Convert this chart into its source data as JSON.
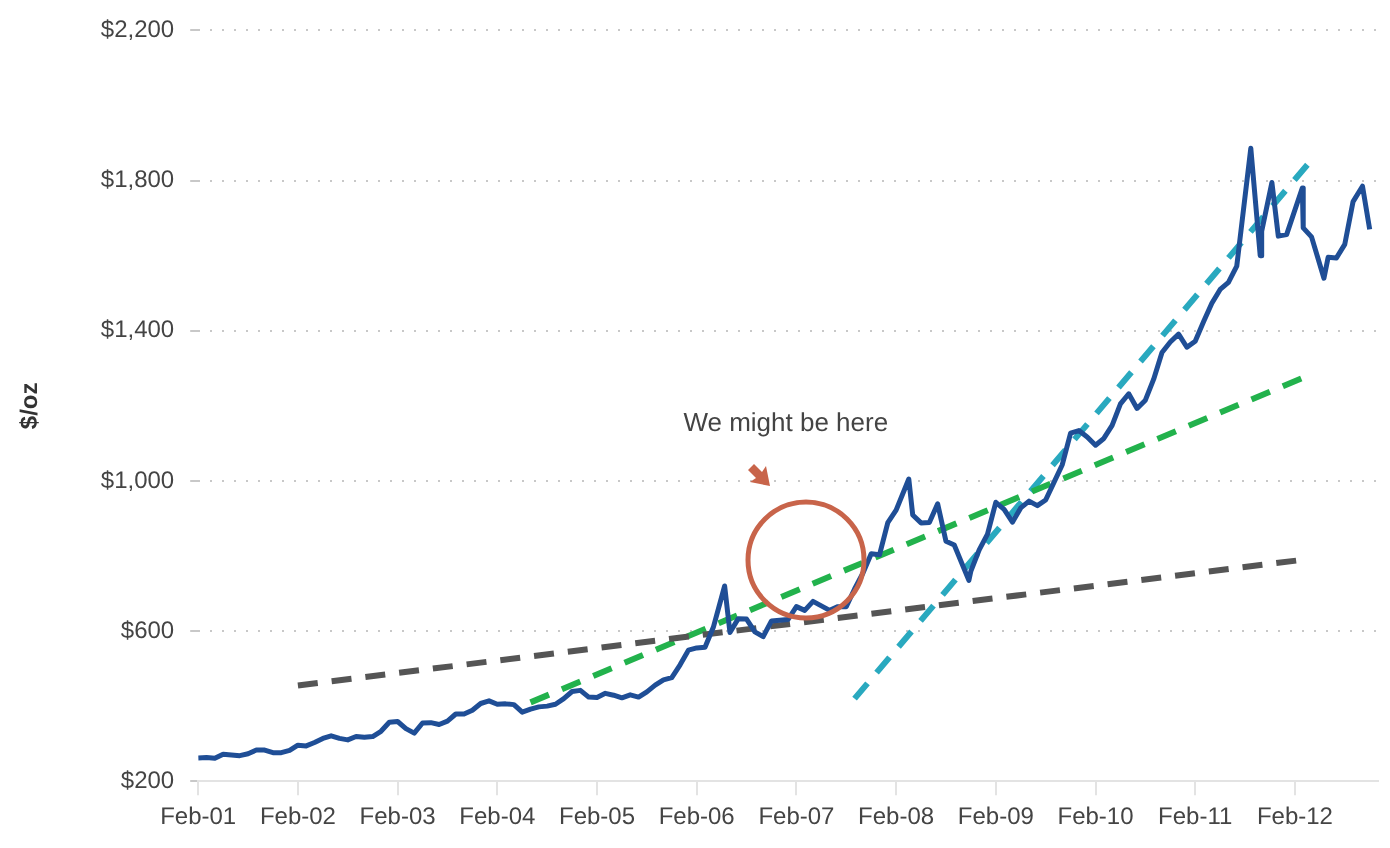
{
  "chart_data": {
    "type": "line",
    "ylabel": "$/oz",
    "xlim": [
      "2001-02",
      "2012-12"
    ],
    "xticks": [
      {
        "value": "2001-02",
        "label": "Feb-01"
      },
      {
        "value": "2002-02",
        "label": "Feb-02"
      },
      {
        "value": "2003-02",
        "label": "Feb-03"
      },
      {
        "value": "2004-02",
        "label": "Feb-04"
      },
      {
        "value": "2005-02",
        "label": "Feb-05"
      },
      {
        "value": "2006-02",
        "label": "Feb-06"
      },
      {
        "value": "2007-02",
        "label": "Feb-07"
      },
      {
        "value": "2008-02",
        "label": "Feb-08"
      },
      {
        "value": "2009-02",
        "label": "Feb-09"
      },
      {
        "value": "2010-02",
        "label": "Feb-10"
      },
      {
        "value": "2011-02",
        "label": "Feb-11"
      },
      {
        "value": "2012-02",
        "label": "Feb-12"
      }
    ],
    "ylim": [
      200,
      2200
    ],
    "yticks": [
      {
        "value": 200,
        "label": "$200"
      },
      {
        "value": 600,
        "label": "$600"
      },
      {
        "value": 1000,
        "label": "$1,000"
      },
      {
        "value": 1400,
        "label": "$1,400"
      },
      {
        "value": 1800,
        "label": "$1,800"
      },
      {
        "value": 2200,
        "label": "$2,200"
      }
    ],
    "grid": "y",
    "marker": "none",
    "annotations": [
      "We might be here"
    ],
    "series": [
      {
        "color": "#1f4e96",
        "line_style": "solid",
        "x": [
          "2001-02",
          "2001-03",
          "2001-04",
          "2001-05",
          "2001-06",
          "2001-07",
          "2001-08",
          "2001-09",
          "2001-10",
          "2001-11",
          "2001-12",
          "2002-01",
          "2002-02",
          "2002-03",
          "2002-04",
          "2002-05",
          "2002-06",
          "2002-07",
          "2002-08",
          "2002-09",
          "2002-10",
          "2002-11",
          "2002-12",
          "2003-01",
          "2003-02",
          "2003-03",
          "2003-04",
          "2003-05",
          "2003-06",
          "2003-07",
          "2003-08",
          "2003-09",
          "2003-10",
          "2003-11",
          "2003-12",
          "2004-01",
          "2004-02",
          "2004-03",
          "2004-04",
          "2004-05",
          "2004-06",
          "2004-07",
          "2004-08",
          "2004-09",
          "2004-10",
          "2004-11",
          "2004-12",
          "2005-01",
          "2005-02",
          "2005-03",
          "2005-04",
          "2005-05",
          "2005-06",
          "2005-07",
          "2005-08",
          "2005-09",
          "2005-10",
          "2005-11",
          "2005-12",
          "2006-01",
          "2006-02",
          "2006-03",
          "2006-04",
          "2006-05-12",
          "2006-06",
          "2006-07",
          "2006-08",
          "2006-09",
          "2006-10",
          "2006-11",
          "2006-12",
          "2007-01",
          "2007-02",
          "2007-03",
          "2007-04",
          "2007-05",
          "2007-06",
          "2007-07",
          "2007-08",
          "2007-09",
          "2007-10",
          "2007-11",
          "2007-12",
          "2008-01",
          "2008-02",
          "2008-03-17",
          "2008-04",
          "2008-05",
          "2008-06",
          "2008-07",
          "2008-08",
          "2008-09",
          "2008-10-24",
          "2008-11",
          "2008-12",
          "2009-01",
          "2009-02",
          "2009-03",
          "2009-04",
          "2009-05",
          "2009-06",
          "2009-07",
          "2009-08",
          "2009-09",
          "2009-10",
          "2009-11",
          "2009-12",
          "2010-01",
          "2010-02",
          "2010-03",
          "2010-04",
          "2010-05",
          "2010-06",
          "2010-07",
          "2010-08",
          "2010-09",
          "2010-10",
          "2010-11",
          "2010-12",
          "2011-01",
          "2011-02",
          "2011-03",
          "2011-04",
          "2011-05",
          "2011-06",
          "2011-07",
          "2011-08-22",
          "2011-09-26",
          "2011-10",
          "2011-11-08",
          "2011-12",
          "2012-01",
          "2012-02-28",
          "2012-03",
          "2012-04",
          "2012-05-16",
          "2012-06",
          "2012-07",
          "2012-08",
          "2012-09",
          "2012-10-05",
          "2012-11"
        ],
        "values": [
          262,
          263,
          261,
          272,
          270,
          268,
          273,
          283,
          283,
          276,
          276,
          282,
          296,
          294,
          303,
          314,
          321,
          314,
          310,
          319,
          317,
          319,
          333,
          357,
          359,
          340,
          328,
          355,
          356,
          351,
          360,
          379,
          379,
          389,
          407,
          414,
          405,
          406,
          404,
          384,
          392,
          398,
          400,
          405,
          420,
          439,
          442,
          424,
          423,
          434,
          429,
          422,
          430,
          424,
          438,
          456,
          470,
          476,
          510,
          549,
          555,
          557,
          610,
          720,
          596,
          633,
          632,
          598,
          585,
          627,
          629,
          631,
          665,
          655,
          679,
          667,
          655,
          665,
          665,
          712,
          754,
          806,
          803,
          889,
          922,
          1005,
          909,
          888,
          889,
          939,
          839,
          829,
          735,
          760,
          816,
          858,
          943,
          924,
          890,
          928,
          946,
          934,
          949,
          996,
          1043,
          1127,
          1134,
          1117,
          1095,
          1113,
          1148,
          1205,
          1232,
          1193,
          1215,
          1271,
          1342,
          1370,
          1391,
          1356,
          1372,
          1424,
          1473,
          1510,
          1529,
          1572,
          1886,
          1600,
          1665,
          1795,
          1652,
          1656,
          1780,
          1674,
          1650,
          1540,
          1596,
          1594,
          1630,
          1744,
          1785,
          1670
        ]
      },
      {
        "color": "#555555",
        "line_style": "dashed",
        "x": [
          "2002-02",
          "2012-03"
        ],
        "values": [
          455,
          790
        ]
      },
      {
        "color": "#22b24c",
        "line_style": "dashed",
        "x": [
          "2004-06",
          "2012-03"
        ],
        "values": [
          410,
          1275
        ]
      },
      {
        "color": "#29a9bf",
        "line_style": "dashed",
        "x": [
          "2007-09",
          "2012-04"
        ],
        "values": [
          420,
          1855
        ]
      }
    ]
  }
}
